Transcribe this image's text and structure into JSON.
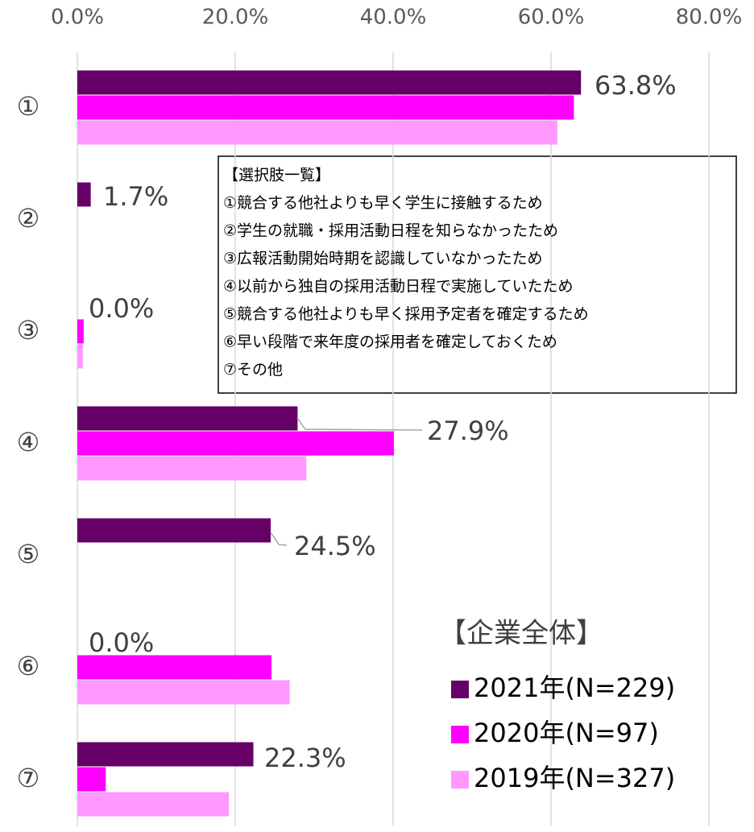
{
  "chart_data": {
    "type": "bar",
    "orientation": "horizontal",
    "categories": [
      "①",
      "②",
      "③",
      "④",
      "⑤",
      "⑥",
      "⑦"
    ],
    "series": [
      {
        "name": "2021年(N=229)",
        "color": "#660066",
        "values": [
          63.8,
          1.7,
          0.0,
          27.9,
          24.5,
          0.0,
          22.3
        ],
        "value_labels": [
          "63.8%",
          "1.7%",
          "0.0%",
          "27.9%",
          "24.5%",
          "0.0%",
          "22.3%"
        ]
      },
      {
        "name": "2020年(N=97)",
        "color": "#ff00ff",
        "values": [
          62.9,
          null,
          0.8,
          40.1,
          null,
          24.6,
          3.6
        ]
      },
      {
        "name": "2019年(N=327)",
        "color": "#ff99ff",
        "values": [
          60.8,
          null,
          0.7,
          29.0,
          null,
          26.9,
          19.2
        ]
      }
    ],
    "xlim": [
      0,
      80
    ],
    "xticks": [
      {
        "value": 0,
        "label": "0.0%"
      },
      {
        "value": 20,
        "label": "20.0%"
      },
      {
        "value": 40,
        "label": "40.0%"
      },
      {
        "value": 60,
        "label": "60.0%"
      },
      {
        "value": 80,
        "label": "80.0%"
      }
    ],
    "grid": true,
    "legend_title": "【企業全体】",
    "legend_position": "lower right",
    "annotation": [
      "【選択肢一覧】",
      "①競合する他社よりも早く学生に接触するため",
      "②学生の就職・採用活動日程を知らなかったため",
      "③広報活動開始時期を認識していなかったため",
      "④以前から独自の採用活動日程で実施していたため",
      "⑤競合する他社よりも早く採用予定者を確定するため",
      "⑥早い段階で来年度の採用者を確定しておくため",
      "⑦その他"
    ]
  }
}
